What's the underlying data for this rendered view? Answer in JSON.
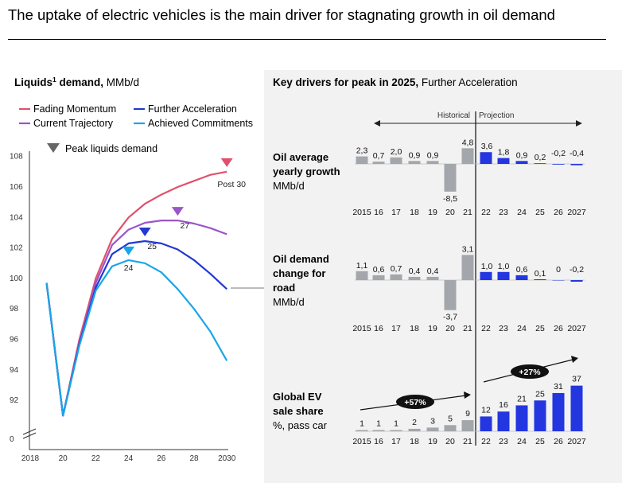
{
  "title": "The uptake of electric vehicles is the main driver for stagnating growth in oil demand",
  "colors": {
    "fading_momentum": "#e0506e",
    "further_acceleration": "#2138d4",
    "current_trajectory": "#9a55c8",
    "achieved_commitments": "#1aa6e6",
    "historical_bar": "#a3a7ab",
    "projection_bar": "#2436e0"
  },
  "chart_data": [
    {
      "type": "line",
      "title_bold": "Liquids",
      "title_sup": "1",
      "title_bold_rest": " demand,",
      "title_regular": " MMb/d",
      "x": [
        2019,
        2020,
        2021,
        2022,
        2023,
        2024,
        2025,
        2026,
        2027,
        2028,
        2029,
        2030
      ],
      "xticks": [
        "2018",
        "20",
        "22",
        "24",
        "26",
        "28",
        "2030"
      ],
      "yticks": [
        "108",
        "106",
        "104",
        "102",
        "100",
        "98",
        "96",
        "94",
        "92",
        "0"
      ],
      "ylim": [
        90.5,
        108
      ],
      "axis_break": true,
      "series": [
        {
          "name": "Fading Momentum",
          "color": "#e0506e",
          "values": [
            99.7,
            91.0,
            96.0,
            100.0,
            102.6,
            104.0,
            104.9,
            105.5,
            106.0,
            106.4,
            106.8,
            107.0
          ]
        },
        {
          "name": "Current Trajectory",
          "color": "#9a55c8",
          "values": [
            99.7,
            91.0,
            95.8,
            99.7,
            102.2,
            103.2,
            103.65,
            103.8,
            103.8,
            103.6,
            103.3,
            102.9
          ]
        },
        {
          "name": "Further Acceleration",
          "color": "#2138d4",
          "values": [
            99.7,
            91.0,
            95.7,
            99.4,
            101.6,
            102.3,
            102.45,
            102.3,
            101.9,
            101.2,
            100.3,
            99.3
          ]
        },
        {
          "name": "Achieved Commitments",
          "color": "#1aa6e6",
          "values": [
            99.7,
            91.0,
            95.6,
            99.2,
            100.8,
            101.2,
            101.0,
            100.4,
            99.3,
            98.0,
            96.5,
            94.6
          ]
        }
      ],
      "legend": "top",
      "peak_marker_label": "Peak liquids demand",
      "peaks": [
        {
          "series": "Fading Momentum",
          "x": 2030,
          "y": 107.0,
          "label": "Post 30"
        },
        {
          "series": "Current Trajectory",
          "x": 2027,
          "y": 103.8,
          "label": "27"
        },
        {
          "series": "Further Acceleration",
          "x": 2025,
          "y": 102.45,
          "label": "25"
        },
        {
          "series": "Achieved Commitments",
          "x": 2024,
          "y": 101.2,
          "label": "24"
        }
      ]
    },
    {
      "type": "bar",
      "title_bold": "Key drivers for peak in 2025,",
      "title_regular": " Further Acceleration",
      "historical_label": "Historical",
      "projection_label": "Projection",
      "categories": [
        "2015",
        "16",
        "17",
        "18",
        "19",
        "20",
        "21",
        "22",
        "23",
        "24",
        "25",
        "26",
        "2027"
      ],
      "projection_start_index": 7,
      "panels": [
        {
          "label_lines": [
            "Oil average",
            "yearly growth"
          ],
          "unit": "MMb/d",
          "values": [
            2.3,
            0.7,
            2.0,
            0.9,
            0.9,
            -8.5,
            4.8,
            3.6,
            1.8,
            0.9,
            0.2,
            -0.2,
            -0.4
          ],
          "labels": [
            "2,3",
            "0,7",
            "2,0",
            "0,9",
            "0,9",
            "-8,5",
            "4,8",
            "3,6",
            "1,8",
            "0,9",
            "0,2",
            "-0,2",
            "-0,4"
          ]
        },
        {
          "label_lines": [
            "Oil demand",
            "change for",
            "road"
          ],
          "unit": "MMb/d",
          "values": [
            1.1,
            0.6,
            0.7,
            0.4,
            0.4,
            -3.7,
            3.1,
            1.0,
            1.0,
            0.6,
            0.1,
            0,
            -0.2
          ],
          "labels": [
            "1,1",
            "0,6",
            "0,7",
            "0,4",
            "0,4",
            "-3,7",
            "3,1",
            "1,0",
            "1,0",
            "0,6",
            "0,1",
            "0",
            "-0,2"
          ]
        },
        {
          "label_lines": [
            "Global EV",
            "sale share"
          ],
          "unit": "%, pass car",
          "values": [
            1,
            1,
            1,
            2,
            3,
            5,
            9,
            12,
            16,
            21,
            25,
            31,
            37
          ],
          "labels": [
            "1",
            "1",
            "1",
            "2",
            "3",
            "5",
            "9",
            "12",
            "16",
            "21",
            "25",
            "31",
            "37"
          ],
          "annotations": [
            {
              "text": "+57%",
              "period": "historical"
            },
            {
              "text": "+27%",
              "period": "projection"
            }
          ]
        }
      ]
    }
  ]
}
